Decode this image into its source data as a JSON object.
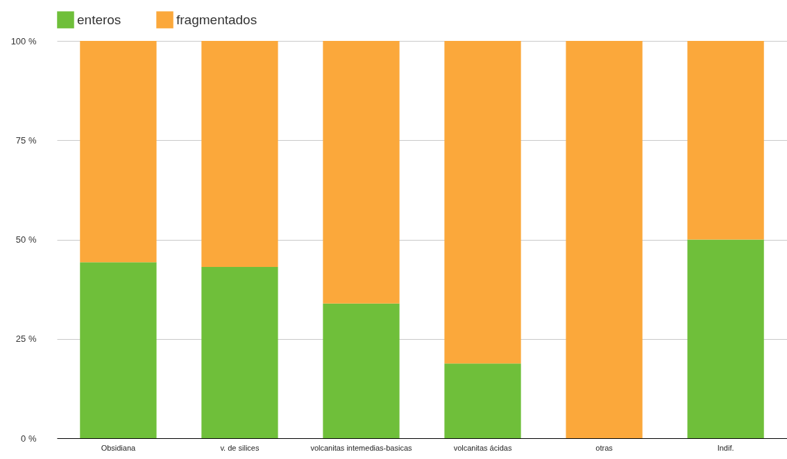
{
  "chart_data": {
    "type": "bar",
    "stacked": true,
    "categories": [
      "Obsidiana",
      "v. de silices",
      "volcanitas intemedias-basicas",
      "volcanitas ácidas",
      "otras",
      "Indif."
    ],
    "series": [
      {
        "name": "enteros",
        "color": "#6fbf3a",
        "values": [
          44.3,
          43.1,
          33.9,
          18.8,
          0,
          50
        ]
      },
      {
        "name": "fragmentados",
        "color": "#fba83b",
        "values": [
          55.7,
          56.9,
          66.1,
          81.2,
          100,
          50
        ]
      }
    ],
    "ylim": [
      0,
      100
    ],
    "yticks": [
      {
        "value": 0,
        "label": "0 %"
      },
      {
        "value": 25,
        "label": "25 %"
      },
      {
        "value": 50,
        "label": "50 %"
      },
      {
        "value": 75,
        "label": "75 %"
      },
      {
        "value": 100,
        "label": "100 %"
      }
    ],
    "grid": "y",
    "legend": "top"
  }
}
